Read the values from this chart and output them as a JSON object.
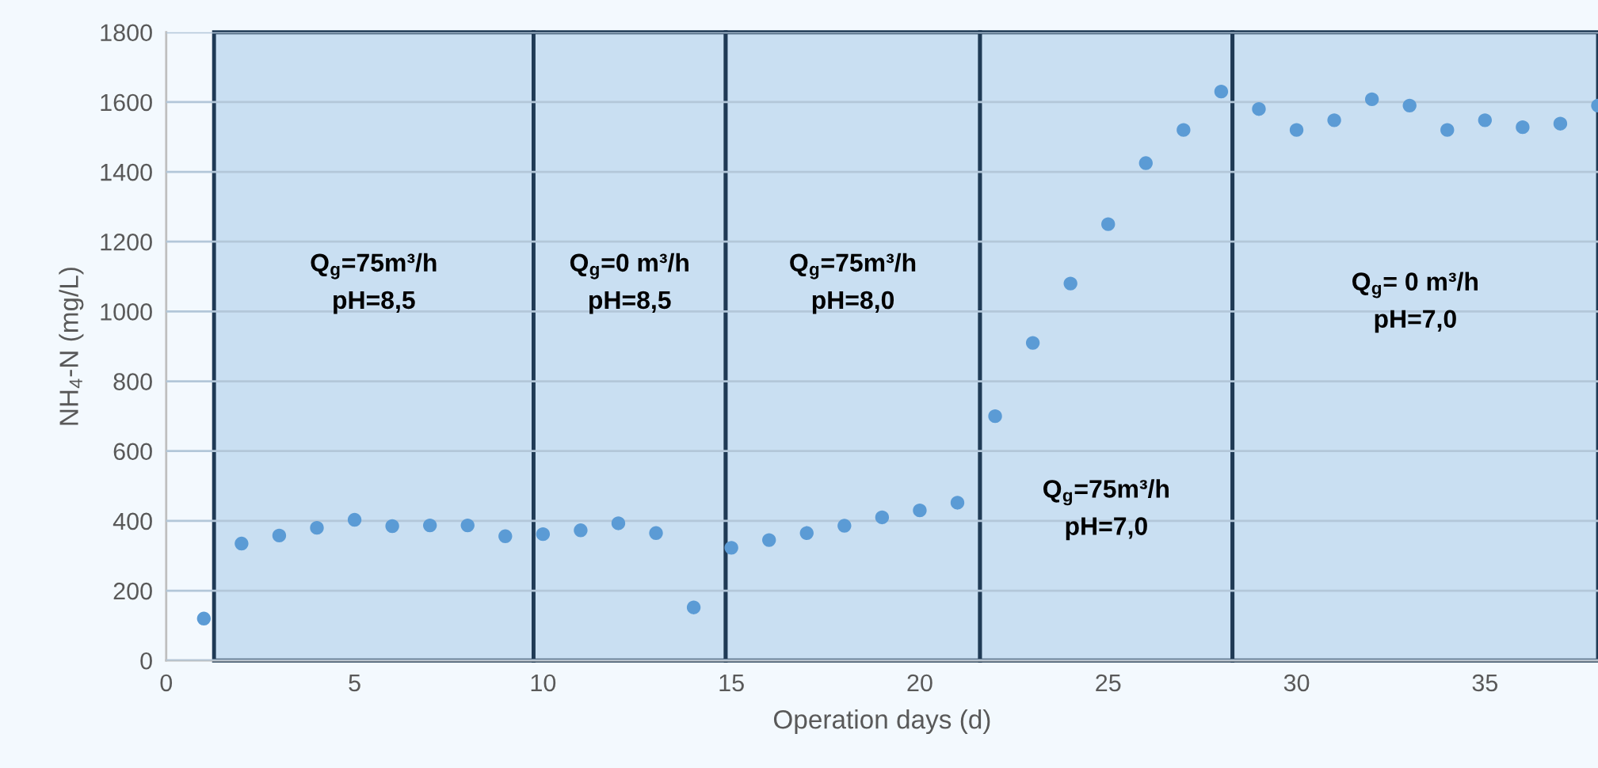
{
  "chart_data": {
    "type": "scatter",
    "xlabel": "Operation days (d)",
    "ylabel": "NH$_{4}$-N (mg/L)",
    "x": [
      1,
      2,
      3,
      4,
      5,
      6,
      7,
      8,
      9,
      10,
      11,
      12,
      13,
      14,
      15,
      16,
      17,
      18,
      19,
      20,
      21,
      22,
      23,
      24,
      25,
      26,
      27,
      28,
      29,
      30,
      31,
      32,
      33,
      34,
      35,
      36,
      37,
      38
    ],
    "series": [
      {
        "color": "#5b9bd5",
        "values": [
          120,
          335,
          358,
          380,
          403,
          385,
          387,
          387,
          356,
          362,
          373,
          393,
          365,
          152,
          323,
          345,
          365,
          386,
          410,
          430,
          452,
          700,
          910,
          1080,
          1250,
          1425,
          1520,
          1630,
          1580,
          1520,
          1548,
          1608,
          1590,
          1520,
          1548,
          1528,
          1538,
          1590
        ]
      }
    ],
    "xlim": [
      0,
      38
    ],
    "xticks": [
      0,
      5,
      10,
      15,
      20,
      25,
      30,
      35
    ],
    "ylim": [
      0,
      1800
    ],
    "yticks": [
      0,
      200,
      400,
      600,
      800,
      1000,
      1200,
      1400,
      1600,
      1800
    ],
    "grid": "y",
    "marker": "circle",
    "bands": [
      {
        "axis": "x",
        "from": 1.27,
        "to": 9.75,
        "label": "Q$_{g}$=75m³/h\npH=8,5",
        "color": "#c9dff2"
      },
      {
        "axis": "x",
        "from": 9.75,
        "to": 14.85,
        "label": "Q$_{g}$=0 m³/h\npH=8,5",
        "color": "#c9dff2"
      },
      {
        "axis": "x",
        "from": 14.85,
        "to": 21.6,
        "label": "Q$_{g}$=75m³/h\npH=8,0",
        "color": "#c9dff2"
      },
      {
        "axis": "x",
        "from": 21.6,
        "to": 28.3,
        "label": "Q$_{g}$=75m³/h\npH=7,0",
        "color": "#c9dff2"
      },
      {
        "axis": "x",
        "from": 28.3,
        "to": 38,
        "label": "Q$_{g}$= 0 m³/h\npH=7,0",
        "color": "#c9dff2"
      }
    ]
  }
}
